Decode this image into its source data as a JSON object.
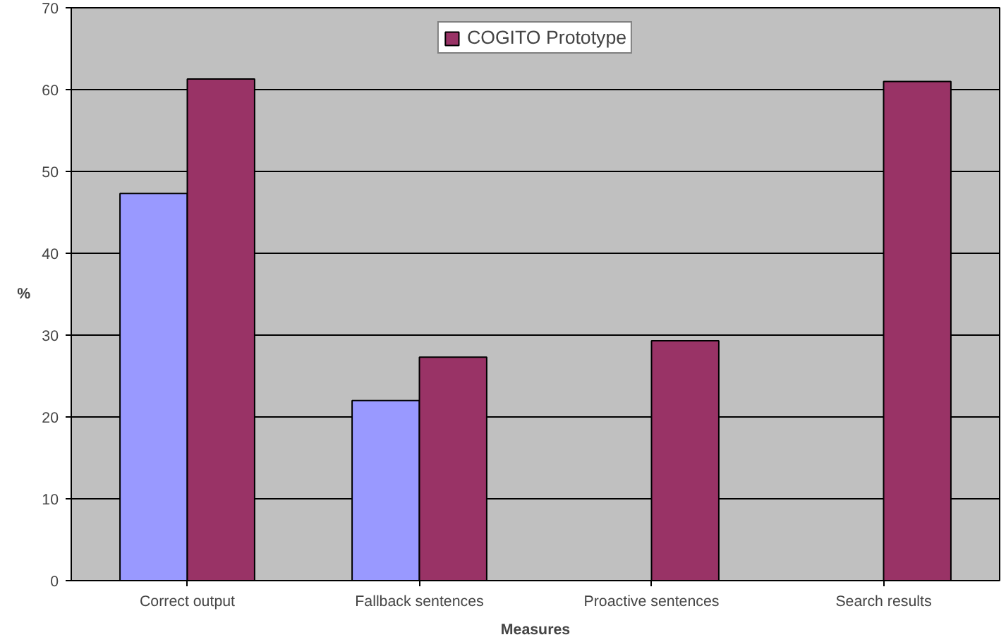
{
  "chart_data": {
    "type": "bar",
    "xlabel": "Measures",
    "ylabel": "%",
    "categories": [
      "Correct output",
      "Fallback sentences",
      "Proactive sentences",
      "Search results"
    ],
    "series": [
      {
        "color": "#9999ff",
        "values": [
          47.3,
          22.0,
          null,
          null
        ]
      },
      {
        "name": "COGITO Prototype",
        "color": "#993366",
        "values": [
          61.3,
          27.3,
          29.3,
          61.0
        ]
      }
    ],
    "ylim": [
      0,
      70
    ],
    "yticks": [
      0,
      10,
      20,
      30,
      40,
      50,
      60,
      70
    ],
    "grid": "y",
    "legend": "top"
  }
}
